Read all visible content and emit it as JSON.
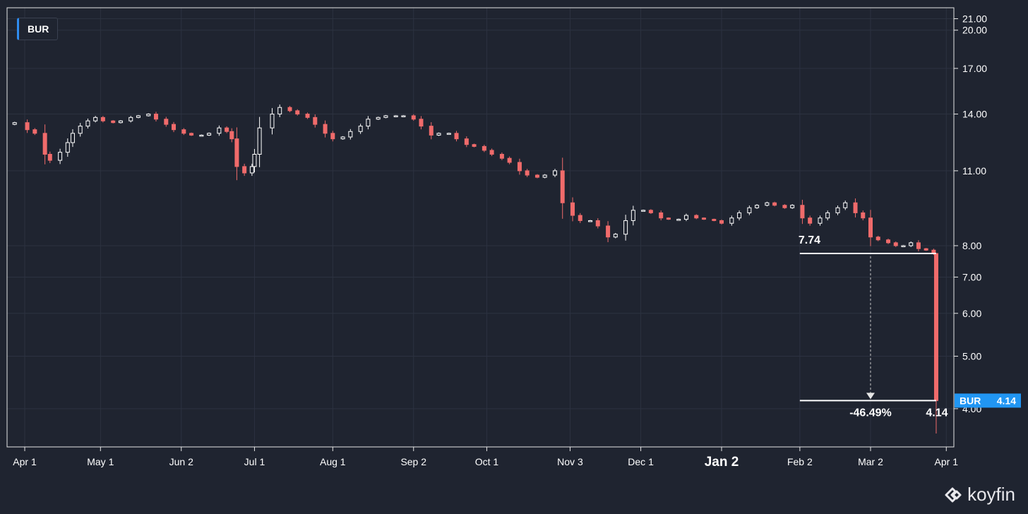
{
  "ticker": "BUR",
  "brand": "koyfin",
  "colors": {
    "up": "#ffffff",
    "down": "#f06b6b",
    "accent": "#2196f3",
    "background": "#1f2430",
    "grid": "#2c3240"
  },
  "chart_data": {
    "type": "candlestick",
    "title": "",
    "xlabel": "",
    "ylabel": "",
    "y_scale": "log",
    "ylim": [
      3.4,
      22
    ],
    "xlim": [
      "2024-03-25",
      "2025-04-04"
    ],
    "grid": true,
    "x_ticks": [
      {
        "date": "2024-04-01",
        "label": "Apr 1"
      },
      {
        "date": "2024-05-01",
        "label": "May 1"
      },
      {
        "date": "2024-06-02",
        "label": "Jun 2"
      },
      {
        "date": "2024-07-01",
        "label": "Jul 1"
      },
      {
        "date": "2024-08-01",
        "label": "Aug 1"
      },
      {
        "date": "2024-09-02",
        "label": "Sep 2"
      },
      {
        "date": "2024-10-01",
        "label": "Oct 1"
      },
      {
        "date": "2024-11-03",
        "label": "Nov 3"
      },
      {
        "date": "2024-12-01",
        "label": "Dec 1"
      },
      {
        "date": "2025-01-02",
        "label": "Jan 2",
        "bold": true
      },
      {
        "date": "2025-02-02",
        "label": "Feb 2"
      },
      {
        "date": "2025-03-02",
        "label": "Mar 2"
      },
      {
        "date": "2025-04-01",
        "label": "Apr 1"
      }
    ],
    "y_ticks": [
      {
        "value": 21,
        "label": "21.00"
      },
      {
        "value": 20,
        "label": "20.00"
      },
      {
        "value": 17,
        "label": "17.00"
      },
      {
        "value": 14,
        "label": "14.00"
      },
      {
        "value": 11,
        "label": "11.00"
      },
      {
        "value": 8,
        "label": "8.00"
      },
      {
        "value": 7,
        "label": "7.00"
      },
      {
        "value": 6,
        "label": "6.00"
      },
      {
        "value": 5,
        "label": "5.00"
      },
      {
        "value": 4,
        "label": "4.00"
      }
    ],
    "close_series": [
      [
        "2024-03-25",
        13.4
      ],
      [
        "2024-03-28",
        13.5
      ],
      [
        "2024-04-02",
        13.1
      ],
      [
        "2024-04-05",
        12.9
      ],
      [
        "2024-04-09",
        11.8
      ],
      [
        "2024-04-11",
        11.5
      ],
      [
        "2024-04-15",
        11.9
      ],
      [
        "2024-04-18",
        12.4
      ],
      [
        "2024-04-20",
        12.9
      ],
      [
        "2024-04-23",
        13.3
      ],
      [
        "2024-04-26",
        13.6
      ],
      [
        "2024-04-29",
        13.8
      ],
      [
        "2024-05-02",
        13.6
      ],
      [
        "2024-05-06",
        13.5
      ],
      [
        "2024-05-09",
        13.6
      ],
      [
        "2024-05-13",
        13.8
      ],
      [
        "2024-05-16",
        13.9
      ],
      [
        "2024-05-20",
        14.0
      ],
      [
        "2024-05-23",
        13.7
      ],
      [
        "2024-05-27",
        13.4
      ],
      [
        "2024-05-30",
        13.1
      ],
      [
        "2024-06-03",
        12.9
      ],
      [
        "2024-06-06",
        12.8
      ],
      [
        "2024-06-10",
        12.8
      ],
      [
        "2024-06-13",
        12.9
      ],
      [
        "2024-06-17",
        13.2
      ],
      [
        "2024-06-20",
        13.0
      ],
      [
        "2024-06-22",
        12.6
      ],
      [
        "2024-06-24",
        11.2
      ],
      [
        "2024-06-27",
        10.9
      ],
      [
        "2024-06-30",
        11.2
      ],
      [
        "2024-07-01",
        11.8
      ],
      [
        "2024-07-03",
        13.2
      ],
      [
        "2024-07-08",
        14.0
      ],
      [
        "2024-07-11",
        14.4
      ],
      [
        "2024-07-15",
        14.2
      ],
      [
        "2024-07-18",
        14.0
      ],
      [
        "2024-07-22",
        13.8
      ],
      [
        "2024-07-25",
        13.4
      ],
      [
        "2024-07-29",
        12.9
      ],
      [
        "2024-08-01",
        12.6
      ],
      [
        "2024-08-05",
        12.7
      ],
      [
        "2024-08-08",
        13.0
      ],
      [
        "2024-08-12",
        13.3
      ],
      [
        "2024-08-15",
        13.7
      ],
      [
        "2024-08-19",
        13.8
      ],
      [
        "2024-08-22",
        13.9
      ],
      [
        "2024-08-26",
        13.9
      ],
      [
        "2024-08-29",
        13.9
      ],
      [
        "2024-09-02",
        13.7
      ],
      [
        "2024-09-05",
        13.3
      ],
      [
        "2024-09-09",
        12.8
      ],
      [
        "2024-09-12",
        12.9
      ],
      [
        "2024-09-16",
        12.9
      ],
      [
        "2024-09-19",
        12.6
      ],
      [
        "2024-09-23",
        12.3
      ],
      [
        "2024-09-26",
        12.2
      ],
      [
        "2024-09-30",
        12.0
      ],
      [
        "2024-10-03",
        11.8
      ],
      [
        "2024-10-07",
        11.6
      ],
      [
        "2024-10-10",
        11.4
      ],
      [
        "2024-10-14",
        11.0
      ],
      [
        "2024-10-17",
        10.8
      ],
      [
        "2024-10-21",
        10.7
      ],
      [
        "2024-10-24",
        10.8
      ],
      [
        "2024-10-28",
        11.0
      ],
      [
        "2024-10-31",
        9.6
      ],
      [
        "2024-11-04",
        9.1
      ],
      [
        "2024-11-07",
        8.9
      ],
      [
        "2024-11-11",
        8.9
      ],
      [
        "2024-11-14",
        8.7
      ],
      [
        "2024-11-18",
        8.3
      ],
      [
        "2024-11-21",
        8.4
      ],
      [
        "2024-11-25",
        8.9
      ],
      [
        "2024-11-28",
        9.3
      ],
      [
        "2024-12-02",
        9.3
      ],
      [
        "2024-12-05",
        9.2
      ],
      [
        "2024-12-09",
        9.0
      ],
      [
        "2024-12-12",
        8.95
      ],
      [
        "2024-12-16",
        8.95
      ],
      [
        "2024-12-19",
        9.1
      ],
      [
        "2024-12-23",
        9.0
      ],
      [
        "2024-12-26",
        8.95
      ],
      [
        "2024-12-30",
        8.9
      ],
      [
        "2025-01-02",
        8.8
      ],
      [
        "2025-01-06",
        9.0
      ],
      [
        "2025-01-09",
        9.2
      ],
      [
        "2025-01-13",
        9.4
      ],
      [
        "2025-01-16",
        9.5
      ],
      [
        "2025-01-20",
        9.6
      ],
      [
        "2025-01-23",
        9.5
      ],
      [
        "2025-01-27",
        9.4
      ],
      [
        "2025-01-30",
        9.5
      ],
      [
        "2025-02-03",
        9.0
      ],
      [
        "2025-02-06",
        8.8
      ],
      [
        "2025-02-10",
        9.0
      ],
      [
        "2025-02-13",
        9.2
      ],
      [
        "2025-02-17",
        9.4
      ],
      [
        "2025-02-20",
        9.6
      ],
      [
        "2025-02-24",
        9.2
      ],
      [
        "2025-02-27",
        9.0
      ],
      [
        "2025-03-02",
        8.3
      ],
      [
        "2025-03-05",
        8.2
      ],
      [
        "2025-03-09",
        8.1
      ],
      [
        "2025-03-12",
        8.0
      ],
      [
        "2025-03-15",
        8.0
      ],
      [
        "2025-03-18",
        8.1
      ],
      [
        "2025-03-21",
        7.9
      ],
      [
        "2025-03-24",
        7.85
      ],
      [
        "2025-03-27",
        7.74
      ],
      [
        "2025-03-28",
        4.14
      ]
    ],
    "last_candle": {
      "date": "2025-03-28",
      "open": 7.74,
      "high": 7.74,
      "low": 3.6,
      "close": 4.14
    },
    "annotation": {
      "start_value": 7.74,
      "start_label": "7.74",
      "start_date": "2025-02-02",
      "end_value": 4.14,
      "end_label": "4.14",
      "end_date": "2025-03-28",
      "change_label": "-46.49%",
      "arrow_date": "2025-03-02"
    },
    "price_tag": {
      "ticker": "BUR",
      "value": "4.14"
    }
  }
}
